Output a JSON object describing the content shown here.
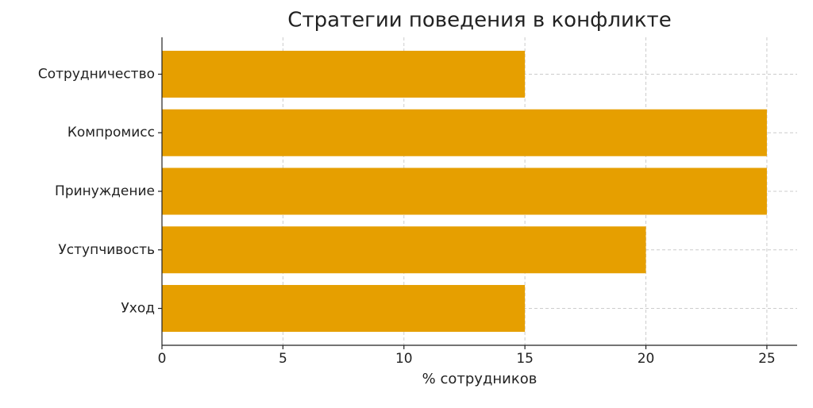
{
  "chart_data": {
    "type": "bar",
    "orientation": "horizontal",
    "title": "Стратегии поведения в конфликте",
    "x_label": "% сотрудников",
    "categories": [
      "Сотрудничество",
      "Компромисс",
      "Принуждение",
      "Уступчивость",
      "Уход"
    ],
    "values": [
      15,
      25,
      25,
      20,
      15
    ],
    "color": "#e69f00",
    "xlim": [
      0,
      26.25
    ],
    "xticks": [
      0,
      5,
      10,
      15,
      20,
      25
    ],
    "grid": true
  }
}
